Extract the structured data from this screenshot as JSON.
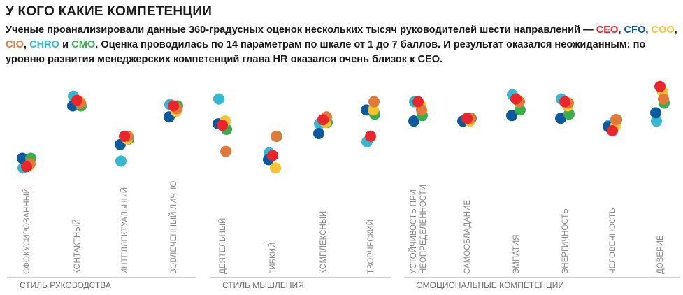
{
  "header": {
    "title": "У КОГО КАКИЕ КОМПЕТЕНЦИИ",
    "subtitle_part1": "Ученые проанализировали данные 360-градусных оценок нескольких тысяч руководителей шести направлений —",
    "subtitle_and": "и",
    "subtitle_part2": ". Оценка проводилась по 14 параметрам по шкале от 1 до 7 баллов. И результат оказался неожиданным: по уровню развития менеджерских компетенций глава HR оказался очень близок к CEO."
  },
  "colors": {
    "CEO": "#e8262b",
    "CFO": "#0b5a9e",
    "COO": "#f7c331",
    "CIO": "#e07a3a",
    "CHRO": "#36b9d0",
    "CMO": "#3aad4c",
    "axis": "#9a9a9a"
  },
  "chart_data": {
    "type": "scatter",
    "series": [
      {
        "name": "CEO"
      },
      {
        "name": "CFO"
      },
      {
        "name": "COO"
      },
      {
        "name": "CIO"
      },
      {
        "name": "CHRO"
      },
      {
        "name": "CMO"
      }
    ],
    "groups": [
      {
        "label": "СТИЛЬ РУКОВОДСТВА",
        "categories": [
          "СФОКУСИРОВАННЫЙ",
          "КОНТАКТНЫЙ",
          "ИНТЕЛЛЕКТУАЛЬНЫЙ",
          "ВОВЛЕЧЕННЫЙ ЛИЧНО"
        ]
      },
      {
        "label": "СТИЛЬ МЫШЛЕНИЯ",
        "categories": [
          "ДЕЯТЕЛЬНЫЙ",
          "ГИБКИЙ",
          "КОМПЛЕКСНЫЙ",
          "ТВОРЧЕСКИЙ"
        ]
      },
      {
        "label": "ЭМОЦИОНАЛЬНЫЕ КОМПЕТЕНЦИИ",
        "categories": [
          "УСТОЙЧИВОСТЬ ПРИ НЕОПРЕДЕЛЕННОСТИ",
          "САМООБЛАДАНИЕ",
          "ЭМПАТИЯ",
          "ЭНЕРГИЧНОСТЬ",
          "ЧЕЛОВЕЧНОСТЬ",
          "ДОВЕРИЕ"
        ]
      }
    ],
    "points": [
      {
        "category": "СФОКУСИРОВАННЫЙ",
        "values": {
          "CEO": 3.1,
          "CFO": 3.4,
          "COO": 3.15,
          "CIO": 3.2,
          "CHRO": 3.05,
          "CMO": 3.4
        }
      },
      {
        "category": "КОНТАКТНЫЙ",
        "values": {
          "CEO": 5.5,
          "CFO": 5.3,
          "COO": 5.45,
          "CIO": 5.4,
          "CHRO": 5.65,
          "CMO": 5.3
        }
      },
      {
        "category": "ИНТЕЛЛЕКТУАЛЬНЫЙ",
        "values": {
          "CEO": 4.2,
          "CFO": 3.9,
          "COO": 4.1,
          "CIO": 4.2,
          "CHRO": 3.3,
          "CMO": 4.1
        }
      },
      {
        "category": "ВОВЛЕЧЕННЫЙ ЛИЧНО",
        "values": {
          "CEO": 5.3,
          "CFO": 4.9,
          "COO": 5.1,
          "CIO": 5.2,
          "CHRO": 5.35,
          "CMO": 5.3
        }
      },
      {
        "category": "ДЕЯТЕЛЬНЫЙ",
        "values": {
          "CEO": 4.6,
          "CFO": 4.65,
          "COO": 4.75,
          "CIO": 3.65,
          "CHRO": 5.55,
          "CMO": 4.45
        }
      },
      {
        "category": "ГИБКИЙ",
        "values": {
          "CEO": 3.5,
          "CFO": 3.35,
          "COO": 3.05,
          "CIO": 4.2,
          "CHRO": 3.6,
          "CMO": 4.2
        }
      },
      {
        "category": "КОМПЛЕКСНЫЙ",
        "values": {
          "CEO": 4.8,
          "CFO": 4.3,
          "COO": 4.7,
          "CIO": 4.9,
          "CHRO": 4.65,
          "CMO": 4.7
        }
      },
      {
        "category": "ТВОРЧЕСКИЙ",
        "values": {
          "CEO": 4.2,
          "CFO": 5.15,
          "COO": 5.15,
          "CIO": 5.45,
          "CHRO": 4.0,
          "CMO": 5.0
        }
      },
      {
        "category": "УСТОЙЧИВОСТЬ ПРИ НЕОПРЕДЕЛЕННОСТИ",
        "values": {
          "CEO": 5.45,
          "CFO": 4.75,
          "COO": 5.3,
          "CIO": 5.15,
          "CHRO": 5.45,
          "CMO": 4.95
        }
      },
      {
        "category": "САМООБЛАДАНИЕ",
        "values": {
          "CEO": 4.85,
          "CFO": 4.75,
          "COO": 4.75,
          "CIO": 4.85,
          "CHRO": 4.75,
          "CMO": 4.85
        }
      },
      {
        "category": "ЭМПАТИЯ",
        "values": {
          "CEO": 5.55,
          "CFO": 4.95,
          "COO": 5.45,
          "CIO": 5.45,
          "CHRO": 5.7,
          "CMO": 5.15
        }
      },
      {
        "category": "ЭНЕРГИЧНОСТЬ",
        "values": {
          "CEO": 5.45,
          "CFO": 4.85,
          "COO": 5.3,
          "CIO": 5.4,
          "CHRO": 5.55,
          "CMO": 5.0
        }
      },
      {
        "category": "ЧЕЛОВЕЧНОСТЬ",
        "values": {
          "CEO": 4.4,
          "CFO": 4.55,
          "COO": 4.55,
          "CIO": 4.8,
          "CHRO": 4.6,
          "CMO": 4.8
        }
      },
      {
        "category": "ДОВЕРИЕ",
        "values": {
          "CEO": 6.0,
          "CFO": 5.05,
          "COO": 5.8,
          "CIO": 5.55,
          "CHRO": 4.75,
          "CMO": 5.4
        }
      }
    ],
    "ylim": [
      2.5,
      6.3
    ],
    "grid": false,
    "legend": "none"
  }
}
